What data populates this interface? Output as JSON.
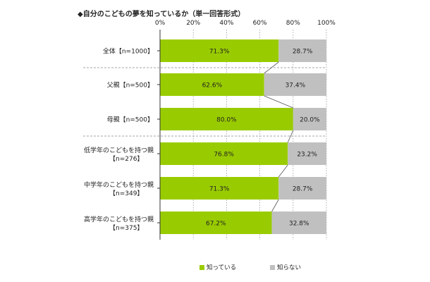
{
  "chart_data": {
    "type": "bar",
    "orientation": "horizontal",
    "stacked": true,
    "title": "◆自分のこどもの夢を知っているか（単一回答形式）",
    "xlim": [
      0,
      100
    ],
    "x_ticks": [
      "0%",
      "20%",
      "40%",
      "60%",
      "80%",
      "100%"
    ],
    "categories": [
      {
        "name": "全体",
        "n": "【n=1000】"
      },
      {
        "name": "父親",
        "n": "【n=500】"
      },
      {
        "name": "母親",
        "n": "【n=500】"
      },
      {
        "name": "低学年のこどもを持つ親",
        "n": "【n=276】"
      },
      {
        "name": "中学年のこどもを持つ親",
        "n": "【n=349】"
      },
      {
        "name": "高学年のこどもを持つ親",
        "n": "【n=375】"
      }
    ],
    "series": [
      {
        "name": "知っている",
        "color": "#99cc00",
        "values": [
          71.3,
          62.6,
          80.0,
          76.8,
          71.3,
          67.2
        ],
        "labels": [
          "71.3%",
          "62.6%",
          "80.0%",
          "76.8%",
          "71.3%",
          "67.2%"
        ]
      },
      {
        "name": "知らない",
        "color": "#c0c0c0",
        "values": [
          28.7,
          37.4,
          20.0,
          23.2,
          28.7,
          32.8
        ],
        "labels": [
          "28.7%",
          "37.4%",
          "20.0%",
          "23.2%",
          "28.7%",
          "32.8%"
        ]
      }
    ],
    "legend_position": "bottom",
    "grid": true
  }
}
